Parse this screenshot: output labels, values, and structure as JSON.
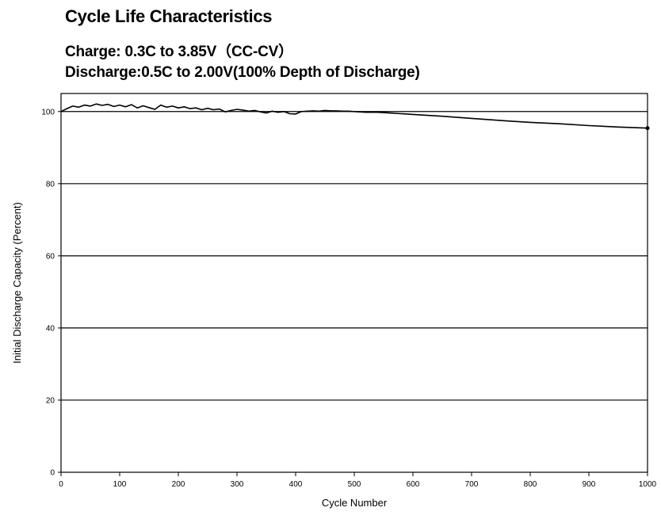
{
  "chart_data": {
    "type": "line",
    "title": "Cycle Life Characteristics",
    "subtitle_lines": [
      "Charge:  0.3C to 3.85V（CC-CV）",
      "Discharge:0.5C to 2.00V(100% Depth of Discharge)"
    ],
    "xlabel": "Cycle Number",
    "ylabel": "Initial Discharge Capacity (Percent)",
    "xlim": [
      0,
      1000
    ],
    "ylim": [
      0,
      105
    ],
    "x_ticks": [
      0,
      100,
      200,
      300,
      400,
      500,
      600,
      700,
      800,
      900,
      1000
    ],
    "y_ticks": [
      0,
      20,
      40,
      60,
      80,
      100
    ],
    "grid": "horizontal",
    "series": [
      {
        "color": "#000000",
        "x": [
          0,
          10,
          20,
          30,
          40,
          50,
          60,
          70,
          80,
          90,
          100,
          110,
          120,
          130,
          140,
          150,
          160,
          170,
          180,
          190,
          200,
          210,
          220,
          230,
          240,
          250,
          260,
          270,
          280,
          290,
          300,
          310,
          320,
          330,
          340,
          350,
          360,
          370,
          380,
          390,
          400,
          410,
          420,
          430,
          440,
          450,
          460,
          470,
          480,
          490,
          500,
          520,
          540,
          560,
          580,
          600,
          650,
          700,
          750,
          800,
          850,
          900,
          950,
          1000
        ],
        "y": [
          100.0,
          100.8,
          101.5,
          101.2,
          101.8,
          101.5,
          102.1,
          101.7,
          102.0,
          101.4,
          101.8,
          101.3,
          101.9,
          101.0,
          101.6,
          101.1,
          100.6,
          101.8,
          101.2,
          101.5,
          101.0,
          101.3,
          100.8,
          101.0,
          100.5,
          100.9,
          100.5,
          100.7,
          99.9,
          100.3,
          100.6,
          100.4,
          100.1,
          100.3,
          99.9,
          99.6,
          100.1,
          99.8,
          100.0,
          99.4,
          99.3,
          100.0,
          100.1,
          100.2,
          100.1,
          100.3,
          100.2,
          100.2,
          100.1,
          100.1,
          100.0,
          99.8,
          99.8,
          99.6,
          99.4,
          99.2,
          98.7,
          98.1,
          97.5,
          97.0,
          96.6,
          96.1,
          95.7,
          95.4
        ]
      }
    ]
  }
}
